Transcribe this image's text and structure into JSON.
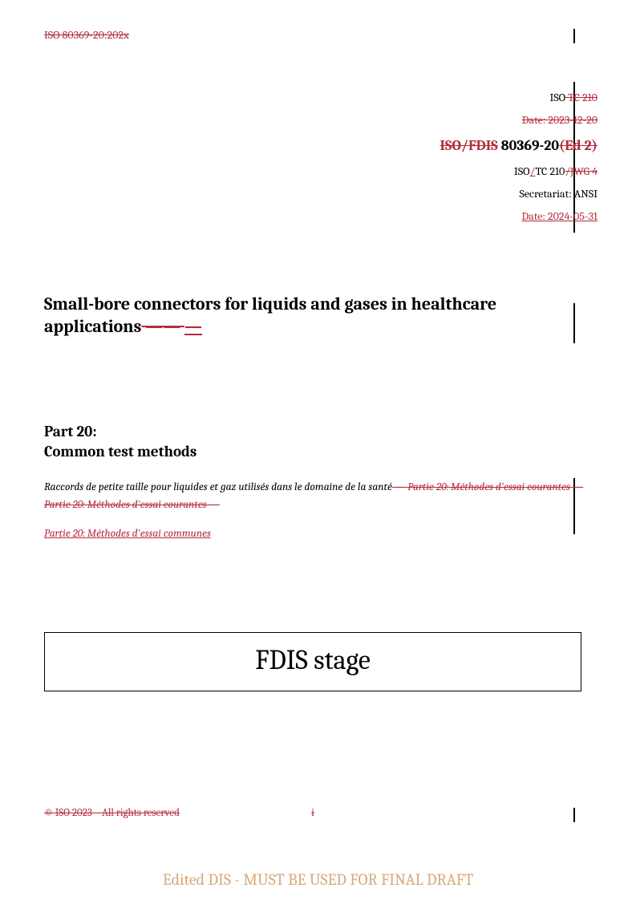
{
  "header": {
    "old_ref": "ISO 80369-20:202x",
    "iso_prefix": "ISO",
    "tc_old": " TC 210",
    "date_old": "Date: 2023-12-20",
    "doc_iso_fdis": "ISO/FDIS",
    "doc_number": " 80369-20",
    "doc_ed": "(Ed 2)",
    "tc_line_iso": "ISO",
    "tc_line_slash": "/",
    "tc_line_tc": "TC 210",
    "tc_line_jwg": "/JWG 4",
    "secretariat": "Secretariat: ANSI",
    "date_new": "Date: 2024-05-31"
  },
  "title": {
    "main": "Small-bore connectors for liquids and gases in healthcare applications",
    "dash_old": " —— ",
    "dash_new": " — "
  },
  "part": {
    "label": "Part 20:",
    "name": "Common test methods"
  },
  "french": {
    "line1_keep": "Raccords de petite taille pour liquides et gaz utilisés dans le domaine de la santé",
    "line1_strike": " — Partie 20: Méthodes d'essai courantes — Partie 20: Méthodes d'essai courantes —",
    "line2_ins": "Partie 20: Méthodes d'essai communes"
  },
  "stage": {
    "text": "FDIS stage"
  },
  "footer": {
    "left": "© ISO 2023 – All rights reserved",
    "center": "i"
  },
  "watermark": {
    "text": "Edited DIS - MUST BE USED FOR FINAL DRAFT"
  },
  "colors": {
    "revision_red": "#b42c3a",
    "watermark": "#d9a87a",
    "text": "#000000",
    "background": "#ffffff"
  }
}
